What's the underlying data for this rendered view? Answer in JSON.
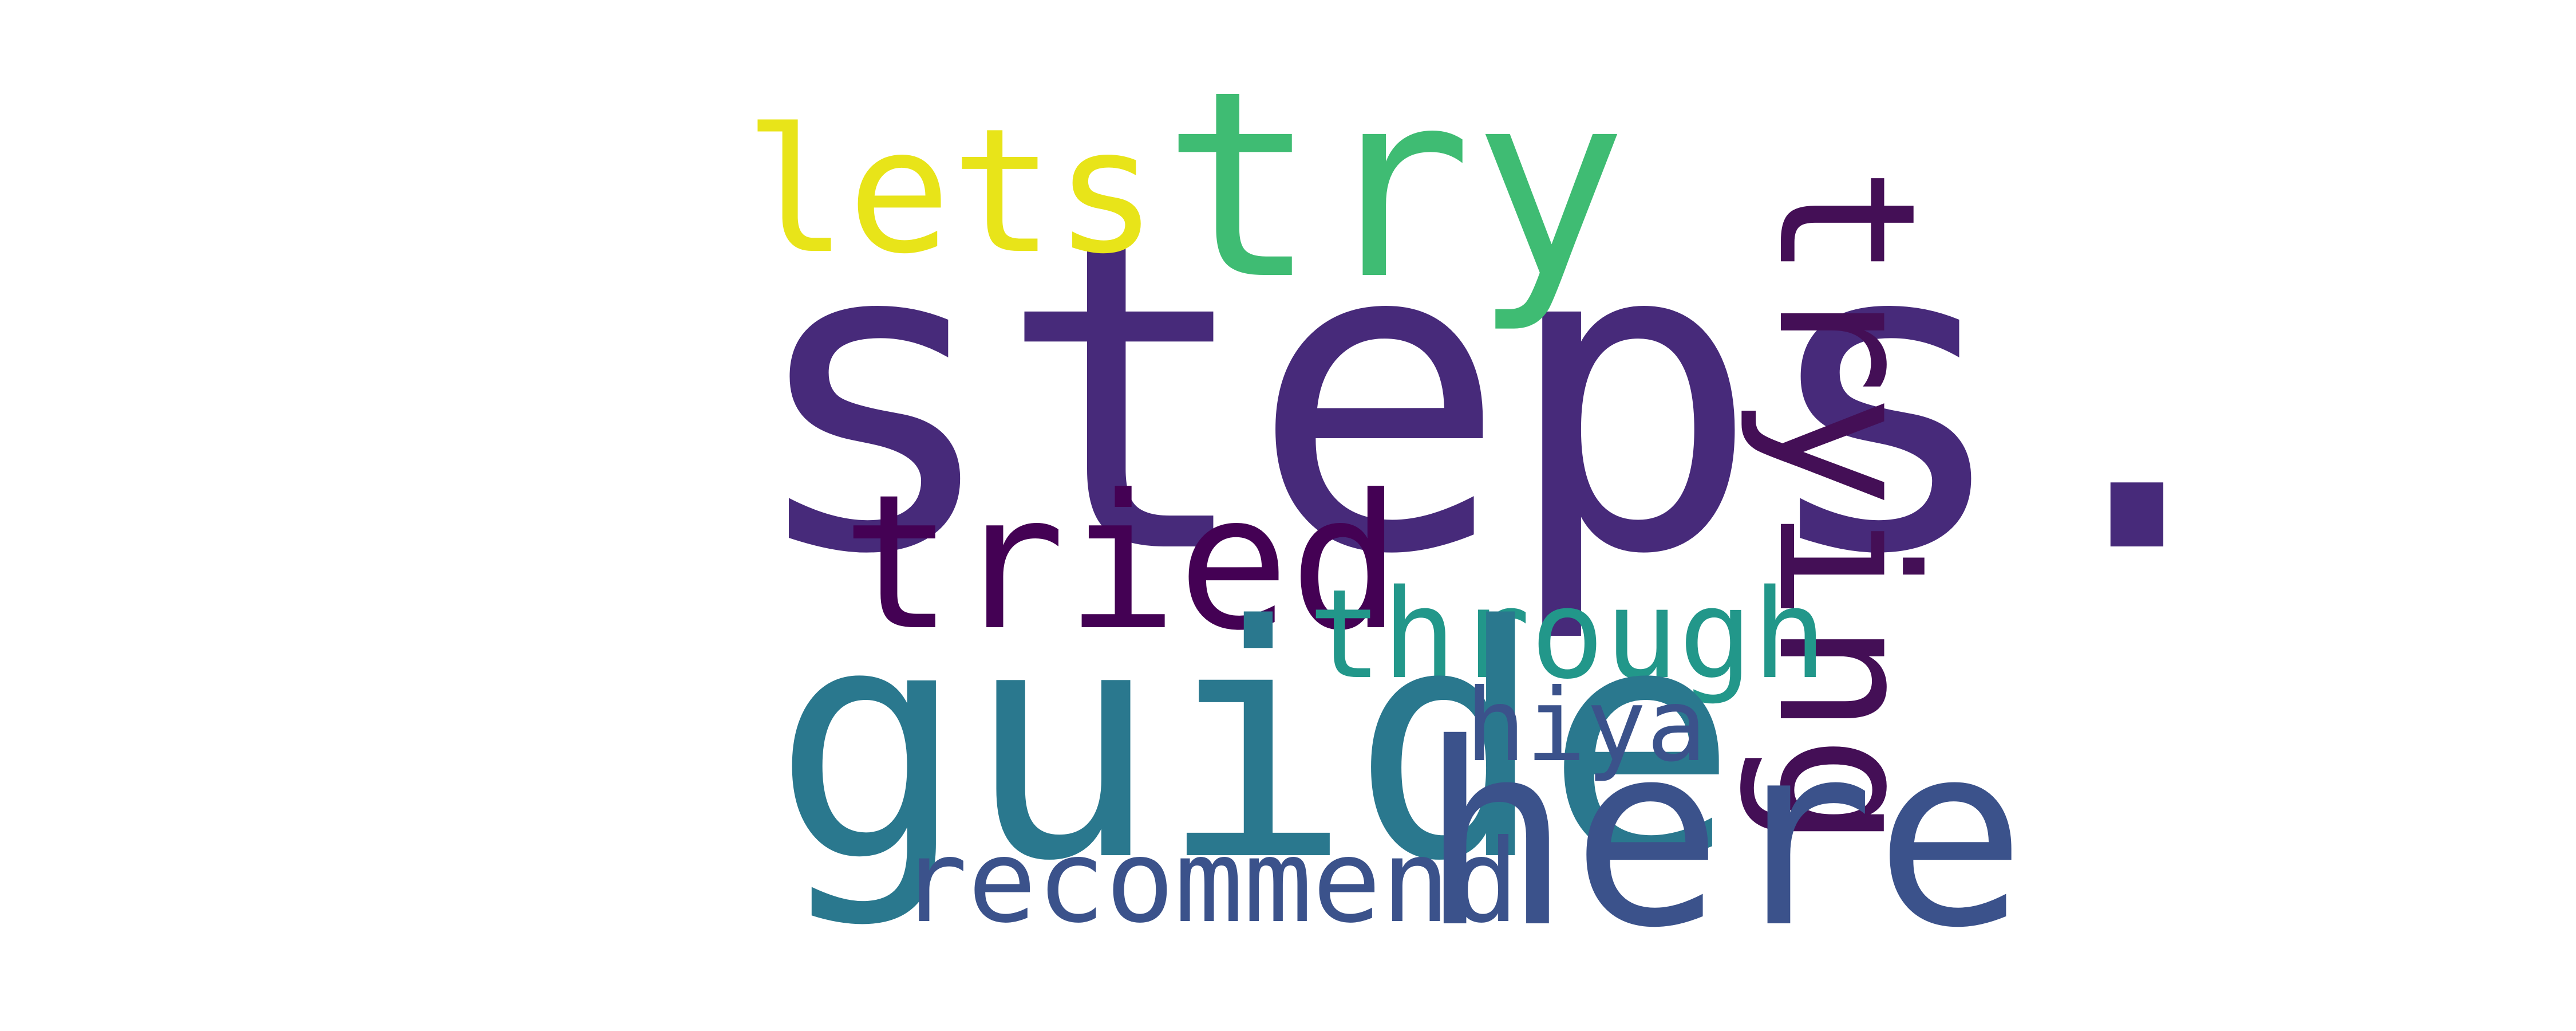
{
  "words": {
    "steps": {
      "text": "steps.",
      "color": "#472a7a"
    },
    "try": {
      "text": "try",
      "color": "#3fbc73"
    },
    "lets": {
      "text": "lets",
      "color": "#e8e419"
    },
    "trying": {
      "text": "trying",
      "color": "#440f56"
    },
    "tried": {
      "text": "tried",
      "color": "#440154"
    },
    "through": {
      "text": "through",
      "color": "#22978a"
    },
    "guide": {
      "text": "guide",
      "color": "#2a788e"
    },
    "hiya": {
      "text": "hiya",
      "color": "#3b528b"
    },
    "here": {
      "text": "here",
      "color": "#3b528b"
    },
    "recommend": {
      "text": "recommend",
      "color": "#3b528b"
    }
  }
}
